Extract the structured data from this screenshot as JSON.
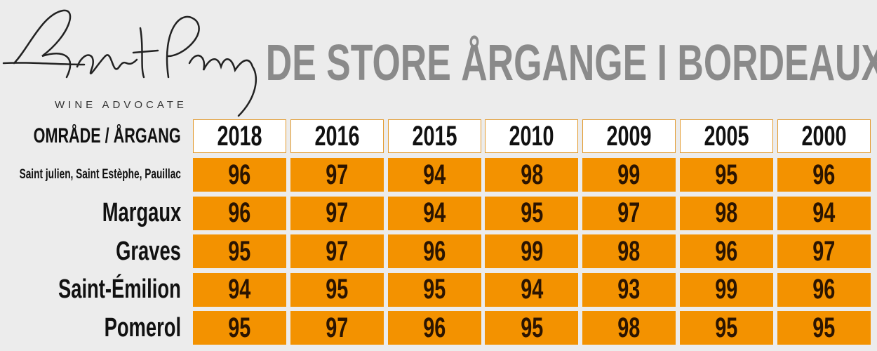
{
  "header": {
    "logo_subtitle": "WINE ADVOCATE",
    "title": "DE STORE ÅRGANGE I BORDEAUX"
  },
  "table": {
    "corner": "OMRÅDE / ÅRGANG",
    "columns": [
      "2018",
      "2016",
      "2015",
      "2010",
      "2009",
      "2005",
      "2000"
    ],
    "rows": [
      {
        "label": "Saint julien, Saint Estèphe, Pauillac",
        "values": [
          96,
          97,
          94,
          98,
          99,
          95,
          96
        ]
      },
      {
        "label": "Margaux",
        "values": [
          96,
          97,
          94,
          95,
          97,
          98,
          94
        ]
      },
      {
        "label": "Graves",
        "values": [
          95,
          97,
          96,
          99,
          98,
          96,
          97
        ]
      },
      {
        "label": "Saint-Émilion",
        "values": [
          94,
          95,
          95,
          94,
          93,
          99,
          96
        ]
      },
      {
        "label": "Pomerol",
        "values": [
          95,
          97,
          96,
          95,
          98,
          95,
          95
        ]
      }
    ]
  }
}
